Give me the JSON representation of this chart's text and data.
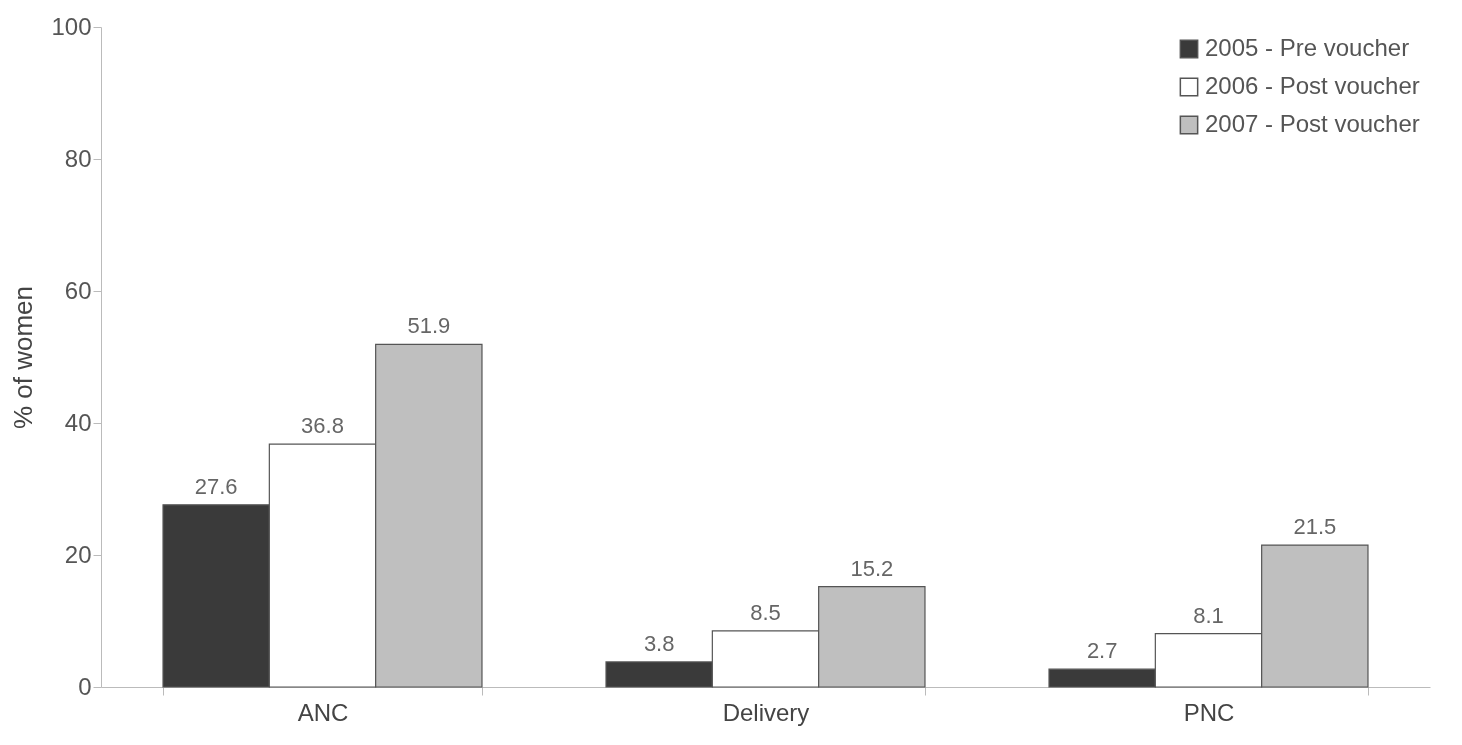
{
  "chart_data": {
    "type": "bar",
    "ylabel": "% of women",
    "categories": [
      "ANC",
      "Delivery",
      "PNC"
    ],
    "series": [
      {
        "name": "2005 - Pre voucher",
        "color": "#3a3a3a",
        "values": [
          27.6,
          3.8,
          2.7
        ]
      },
      {
        "name": "2006 - Post voucher",
        "color": "#ffffff",
        "values": [
          36.8,
          8.5,
          8.1
        ]
      },
      {
        "name": "2007 - Post voucher",
        "color": "#bfbfbf",
        "values": [
          51.9,
          15.2,
          21.5
        ]
      }
    ],
    "ylim": [
      0,
      100
    ],
    "yticks": [
      0,
      20,
      40,
      60,
      80,
      100
    ],
    "grid": false,
    "legend": "top right",
    "data_labels": true
  }
}
